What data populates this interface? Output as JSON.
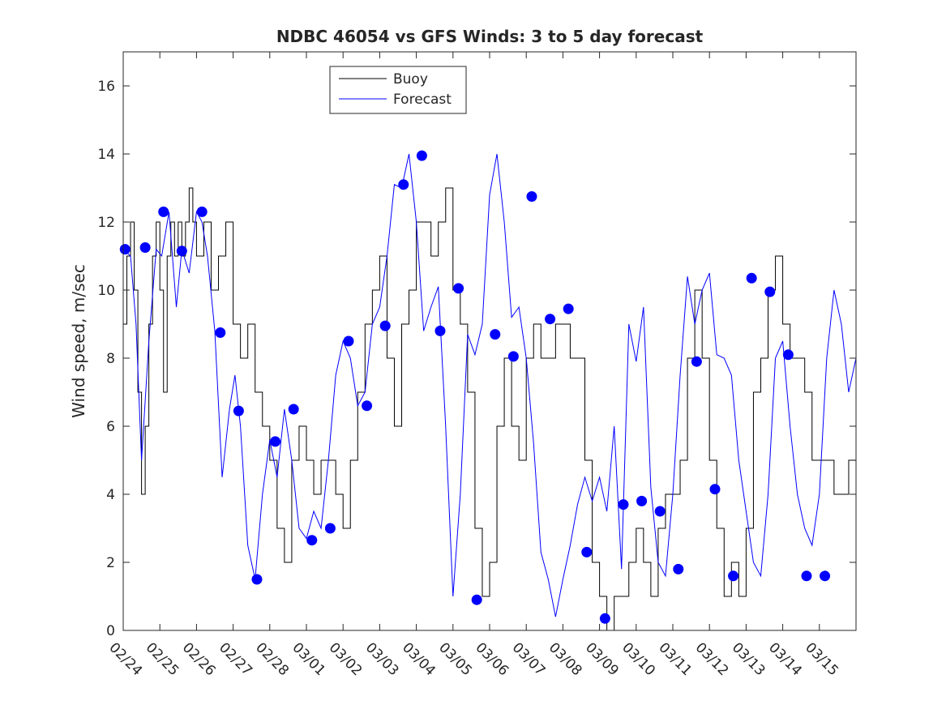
{
  "chart_data": {
    "type": "line",
    "title": "NDBC 46054 vs GFS Winds: 3 to 5 day forecast",
    "xlabel": "",
    "ylabel": "Wind speed, m/sec",
    "xlim": [
      0,
      20
    ],
    "ylim": [
      0,
      17
    ],
    "x_tick_labels": [
      "02/24",
      "02/25",
      "02/26",
      "02/27",
      "02/28",
      "03/01",
      "03/02",
      "03/03",
      "03/04",
      "03/05",
      "03/06",
      "03/07",
      "03/08",
      "03/09",
      "03/10",
      "03/11",
      "03/12",
      "03/13",
      "03/14",
      "03/15"
    ],
    "y_ticks": [
      0,
      2,
      4,
      6,
      8,
      10,
      12,
      14,
      16
    ],
    "legend": {
      "location": "top-center",
      "entries": [
        "Buoy",
        "Forecast"
      ]
    },
    "colors": {
      "buoy": "#000000",
      "forecast": "#0000ff",
      "axis": "#262626",
      "background": "#ffffff"
    },
    "series": [
      {
        "name": "Buoy",
        "style": "stairs",
        "x": [
          0,
          0.1,
          0.2,
          0.3,
          0.4,
          0.5,
          0.6,
          0.7,
          0.8,
          0.9,
          1.0,
          1.1,
          1.2,
          1.3,
          1.4,
          1.5,
          1.6,
          1.7,
          1.8,
          1.9,
          2.0,
          2.2,
          2.4,
          2.6,
          2.8,
          3.0,
          3.2,
          3.4,
          3.6,
          3.8,
          4.0,
          4.2,
          4.4,
          4.6,
          4.8,
          5.0,
          5.2,
          5.4,
          5.6,
          5.8,
          6.0,
          6.2,
          6.4,
          6.6,
          6.8,
          7.0,
          7.2,
          7.4,
          7.6,
          7.8,
          8.0,
          8.2,
          8.4,
          8.6,
          8.8,
          9.0,
          9.2,
          9.4,
          9.6,
          9.8,
          10.0,
          10.2,
          10.4,
          10.6,
          10.8,
          11.0,
          11.2,
          11.4,
          11.6,
          11.8,
          12.0,
          12.2,
          12.4,
          12.6,
          12.8,
          13.0,
          13.2,
          13.4,
          13.6,
          13.8,
          14.0,
          14.2,
          14.4,
          14.6,
          14.8,
          15.0,
          15.2,
          15.4,
          15.6,
          15.8,
          16.0,
          16.2,
          16.4,
          16.6,
          16.8,
          17.0,
          17.2,
          17.4,
          17.6,
          17.8,
          18.0,
          18.2,
          18.4,
          18.6,
          18.8,
          19.0,
          19.2,
          19.4,
          19.6,
          19.8,
          20.0
        ],
        "values": [
          9,
          11,
          12,
          10,
          7,
          4,
          6,
          9,
          11,
          12,
          10,
          7,
          11,
          12,
          11,
          12,
          11,
          12,
          13,
          12,
          11,
          12,
          10,
          11,
          12,
          9,
          8,
          9,
          7,
          6,
          5,
          3,
          2,
          5,
          6,
          5,
          4,
          5,
          5,
          4,
          3,
          5,
          7,
          9,
          10,
          11,
          8,
          6,
          9,
          10,
          12,
          12,
          11,
          12,
          13,
          10,
          9,
          7,
          3,
          1,
          2,
          6,
          8,
          6,
          5,
          8,
          9,
          8,
          8,
          9,
          9,
          8,
          8,
          5,
          2,
          1,
          0,
          1,
          1,
          2,
          3,
          2,
          1,
          3,
          4,
          4,
          5,
          8,
          10,
          8,
          5,
          3,
          1,
          2,
          1,
          3,
          7,
          8,
          10,
          11,
          9,
          8,
          8,
          7,
          5,
          5,
          5,
          4,
          4,
          5,
          7
        ]
      },
      {
        "name": "Forecast",
        "style": "line",
        "x": [
          0,
          0.2,
          0.35,
          0.5,
          0.7,
          0.9,
          1.05,
          1.25,
          1.45,
          1.6,
          1.8,
          2.0,
          2.15,
          2.3,
          2.5,
          2.7,
          2.9,
          3.05,
          3.2,
          3.4,
          3.6,
          3.8,
          4.0,
          4.2,
          4.4,
          4.6,
          4.8,
          5.0,
          5.2,
          5.4,
          5.6,
          5.8,
          6.0,
          6.2,
          6.4,
          6.6,
          6.8,
          7.0,
          7.2,
          7.4,
          7.6,
          7.8,
          8.0,
          8.2,
          8.4,
          8.6,
          8.8,
          9.0,
          9.2,
          9.4,
          9.6,
          9.8,
          10.0,
          10.2,
          10.4,
          10.6,
          10.8,
          11.0,
          11.2,
          11.4,
          11.6,
          11.8,
          12.0,
          12.2,
          12.4,
          12.6,
          12.8,
          13.0,
          13.2,
          13.4,
          13.6,
          13.8,
          14.0,
          14.2,
          14.4,
          14.6,
          14.8,
          15.0,
          15.2,
          15.4,
          15.6,
          15.8,
          16.0,
          16.2,
          16.4,
          16.6,
          16.8,
          17.0,
          17.2,
          17.4,
          17.6,
          17.8,
          18.0,
          18.2,
          18.4,
          18.6,
          18.8,
          19.0,
          19.2,
          19.4,
          19.6,
          19.8,
          20.0
        ],
        "values": [
          11.2,
          11.0,
          9.0,
          5.0,
          8.5,
          11.2,
          11.0,
          12.3,
          9.5,
          11.2,
          10.5,
          12.3,
          12.0,
          11.0,
          8.8,
          4.5,
          6.5,
          7.5,
          6.0,
          2.5,
          1.5,
          4.0,
          5.6,
          4.5,
          6.5,
          5.0,
          3.0,
          2.7,
          3.5,
          3.0,
          5.0,
          7.5,
          8.5,
          8.0,
          6.6,
          7.0,
          9.0,
          9.5,
          11.0,
          13.1,
          13.0,
          14.0,
          12.0,
          8.8,
          9.5,
          10.1,
          6.0,
          1.0,
          4.0,
          8.7,
          8.1,
          9.0,
          12.8,
          14.0,
          12.0,
          9.2,
          9.5,
          8.0,
          5.5,
          2.3,
          1.5,
          0.4,
          1.5,
          2.5,
          3.7,
          4.5,
          3.8,
          4.5,
          3.5,
          6.0,
          1.8,
          9.0,
          7.9,
          9.5,
          4.2,
          2.0,
          1.6,
          4.0,
          7.5,
          10.4,
          9.0,
          10.0,
          10.5,
          8.1,
          8.0,
          7.5,
          5.0,
          3.5,
          2.0,
          1.6,
          4.0,
          8.0,
          8.5,
          6.0,
          4.0,
          3.0,
          2.5,
          4.0,
          8.0,
          10.0,
          9.0,
          7.0,
          8.0
        ]
      },
      {
        "name": "Forecast markers",
        "style": "markers",
        "x": [
          0.05,
          0.6,
          1.1,
          1.6,
          2.15,
          2.65,
          3.15,
          3.65,
          4.15,
          4.65,
          5.15,
          5.65,
          6.15,
          6.65,
          7.15,
          7.65,
          8.15,
          8.65,
          9.15,
          9.65,
          10.15,
          10.65,
          11.15,
          11.65,
          12.15,
          12.65,
          13.15,
          13.65,
          14.15,
          14.65,
          15.15,
          15.65,
          16.15,
          16.65,
          17.15,
          17.65,
          18.15,
          18.65,
          19.15
        ],
        "values": [
          11.2,
          11.25,
          12.3,
          11.15,
          12.3,
          8.75,
          6.45,
          1.5,
          5.55,
          6.5,
          2.65,
          3.0,
          8.5,
          6.6,
          8.95,
          13.1,
          13.95,
          8.8,
          10.05,
          0.9,
          8.7,
          8.05,
          12.75,
          9.15,
          9.45,
          2.3,
          0.35,
          3.7,
          3.8,
          3.5,
          1.8,
          7.9,
          4.15,
          1.6,
          10.35,
          9.95,
          8.1,
          1.6,
          1.6
        ]
      }
    ]
  }
}
